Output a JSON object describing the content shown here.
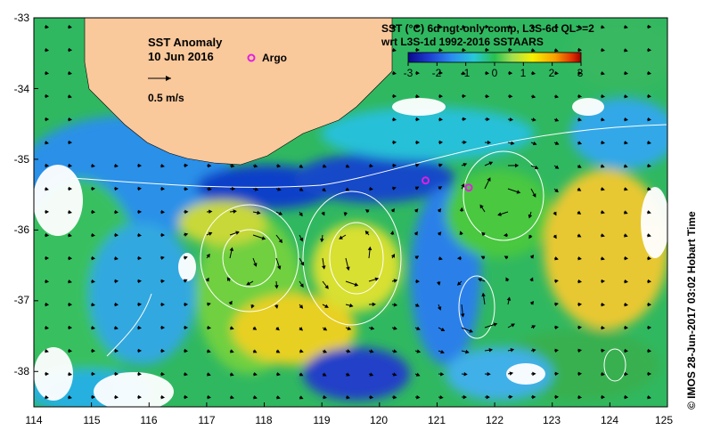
{
  "map": {
    "title": "SST Anomaly",
    "date": "10 Jun 2016",
    "argo_label": "Argo",
    "vector_scale": "0.5 m/s",
    "product_line1": "SST (°C) 6d ngt-only comp, L3S-6d QL>=2",
    "product_line2": "wrt L3S-1d 1992-2016 SSTAARS",
    "credit": "© IMOS 28-Jun-2017 03:02 Hobart Time",
    "land_color": "#f9c89b",
    "argo_color": "#e020e0",
    "lon_ticks": [
      "114",
      "115",
      "116",
      "117",
      "118",
      "119",
      "120",
      "121",
      "122",
      "123",
      "124",
      "125"
    ],
    "lat_ticks": [
      "-33",
      "-34",
      "-35",
      "-36",
      "-37",
      "-38"
    ],
    "lon_range": [
      114,
      125
    ],
    "lat_range": [
      -33,
      -38.5
    ],
    "argo_floats": [
      {
        "lon": 120.8,
        "lat": -35.3
      },
      {
        "lon": 121.55,
        "lat": -35.4
      }
    ]
  },
  "colorbar": {
    "ticks": [
      "-3",
      "-2",
      "-1",
      "0",
      "1",
      "2",
      "3"
    ],
    "colors": [
      "#0a0a8c",
      "#1e3cd0",
      "#2a8cf0",
      "#28c8d8",
      "#28c050",
      "#a0e050",
      "#f8f000",
      "#f8a000",
      "#e03000",
      "#a00000"
    ]
  }
}
